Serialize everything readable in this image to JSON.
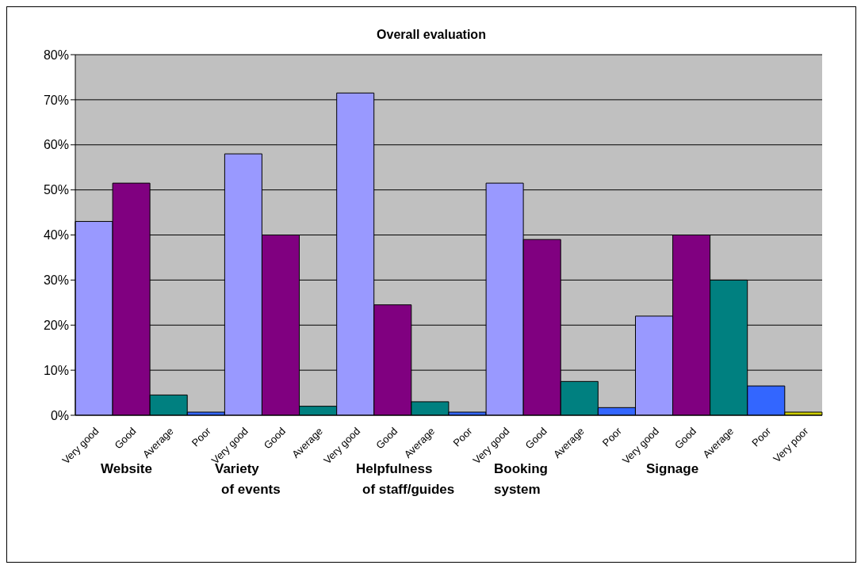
{
  "chart_data": {
    "type": "bar",
    "title": "Overall evaluation",
    "categories": [
      "Very good",
      "Good",
      "Average",
      "Poor",
      "Very good",
      "Good",
      "Average",
      "Very good",
      "Good",
      "Average",
      "Poor",
      "Very good",
      "Good",
      "Average",
      "Poor",
      "Very good",
      "Good",
      "Average",
      "Poor",
      "Very poor"
    ],
    "values": [
      0.43,
      0.515,
      0.045,
      0.007,
      0.58,
      0.4,
      0.02,
      0.715,
      0.245,
      0.03,
      0.007,
      0.515,
      0.39,
      0.075,
      0.017,
      0.22,
      0.4,
      0.3,
      0.065,
      0.007
    ],
    "colors": [
      "#9999ff",
      "#800080",
      "#008080",
      "#3366ff",
      "#9999ff",
      "#800080",
      "#008080",
      "#9999ff",
      "#800080",
      "#008080",
      "#3366ff",
      "#9999ff",
      "#800080",
      "#008080",
      "#3366ff",
      "#9999ff",
      "#800080",
      "#008080",
      "#3366ff",
      "#cccc00"
    ],
    "ylim": [
      0,
      0.8
    ],
    "yticks": [
      {
        "value": 0,
        "label": "0%"
      },
      {
        "value": 0.1,
        "label": "10%"
      },
      {
        "value": 0.2,
        "label": "20%"
      },
      {
        "value": 0.3,
        "label": "30%"
      },
      {
        "value": 0.4,
        "label": "40%"
      },
      {
        "value": 0.5,
        "label": "50%"
      },
      {
        "value": 0.6,
        "label": "60%"
      },
      {
        "value": 0.7,
        "label": "70%"
      },
      {
        "value": 0.8,
        "label": "80%"
      }
    ],
    "grid": "y",
    "annotations": [
      "Website",
      "Variety\nof events",
      "Helpfulness\nof staff/guides",
      "Booking\nsystem",
      "Signage"
    ]
  }
}
